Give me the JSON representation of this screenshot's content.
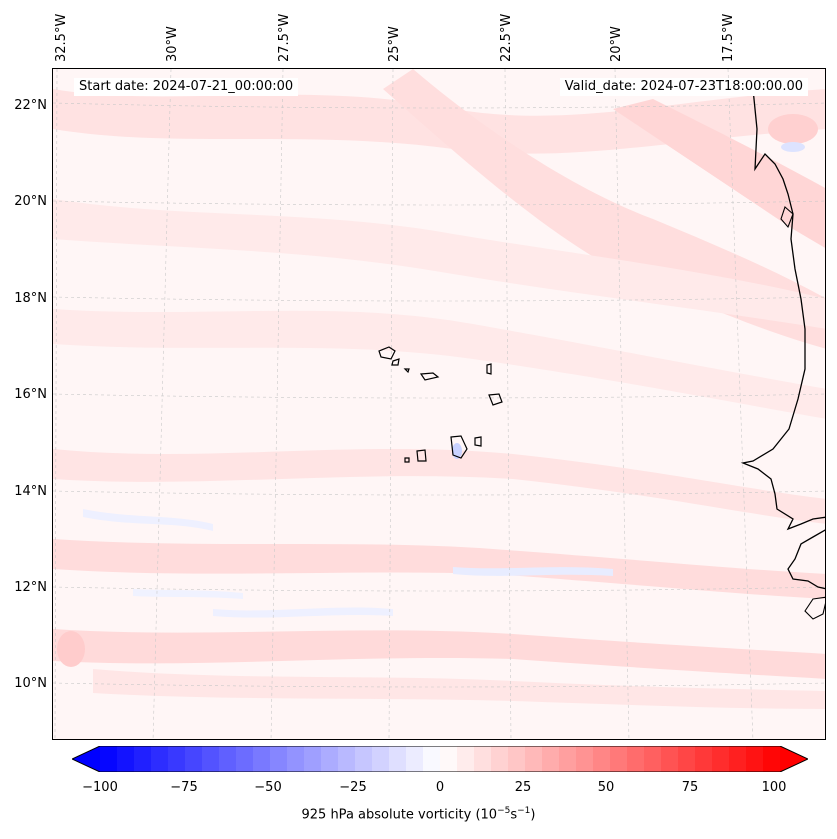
{
  "start_date": "Start date: 2024-07-21_00:00:00",
  "valid_date": "Valid_date: 2024-07-23T18:00:00.00",
  "longitude_labels": [
    "32.5°W",
    "30°W",
    "27.5°W",
    "25°W",
    "22.5°W",
    "20°W",
    "17.5°W"
  ],
  "latitude_labels": [
    "22°N",
    "20°N",
    "18°N",
    "16°N",
    "14°N",
    "12°N",
    "10°N"
  ],
  "colorbar": {
    "ticks": [
      "−100",
      "−75",
      "−50",
      "−25",
      "0",
      "25",
      "50",
      "75",
      "100"
    ],
    "label_main": "925 hPa absolute vorticity (10",
    "label_exp1": "−5",
    "label_mid": "s",
    "label_exp2": "−1",
    "label_end": ")",
    "min": -100,
    "max": 100,
    "colors": {
      "negative_end": "#0000ff",
      "zero": "#ffffff",
      "positive_end": "#ff0000"
    }
  },
  "chart_data": {
    "type": "heatmap",
    "title": "",
    "variable": "925 hPa absolute vorticity",
    "units": "10^-5 s^-1",
    "value_range": [
      -100,
      100
    ],
    "extent": {
      "lon_min": -33,
      "lon_max": -15.5,
      "lat_min": 9,
      "lat_max": 23
    },
    "lon_ticks": [
      -32.5,
      -30,
      -27.5,
      -25,
      -22.5,
      -20,
      -17.5
    ],
    "lat_ticks": [
      22,
      20,
      18,
      16,
      14,
      12,
      10
    ],
    "features": [
      "Cape Verde islands",
      "West African coastline"
    ]
  }
}
